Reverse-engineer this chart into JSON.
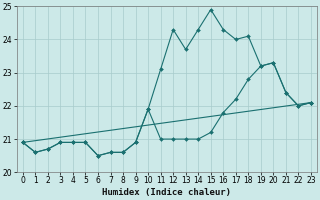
{
  "title": "",
  "xlabel": "Humidex (Indice chaleur)",
  "xlim": [
    -0.5,
    23.5
  ],
  "ylim": [
    20,
    25
  ],
  "yticks": [
    20,
    21,
    22,
    23,
    24,
    25
  ],
  "xticks": [
    0,
    1,
    2,
    3,
    4,
    5,
    6,
    7,
    8,
    9,
    10,
    11,
    12,
    13,
    14,
    15,
    16,
    17,
    18,
    19,
    20,
    21,
    22,
    23
  ],
  "bg_color": "#cce9e8",
  "grid_color": "#a8cccc",
  "line_color": "#1a7070",
  "line1_y": [
    20.9,
    20.6,
    20.7,
    20.9,
    20.9,
    20.9,
    20.5,
    20.6,
    20.6,
    20.9,
    21.9,
    23.1,
    24.3,
    23.7,
    24.3,
    24.9,
    24.3,
    24.0,
    24.1,
    23.2,
    23.3,
    22.4,
    22.0,
    22.1
  ],
  "line2_y": [
    20.9,
    20.6,
    20.7,
    20.9,
    20.9,
    20.9,
    20.5,
    20.6,
    20.6,
    20.9,
    21.9,
    21.0,
    21.0,
    21.0,
    21.0,
    21.2,
    21.8,
    22.2,
    22.8,
    23.2,
    23.3,
    22.4,
    22.0,
    22.1
  ],
  "line3_x": [
    0,
    23
  ],
  "line3_y": [
    20.9,
    22.1
  ],
  "marker": "D",
  "marker_size": 2.0,
  "line_width": 0.8
}
